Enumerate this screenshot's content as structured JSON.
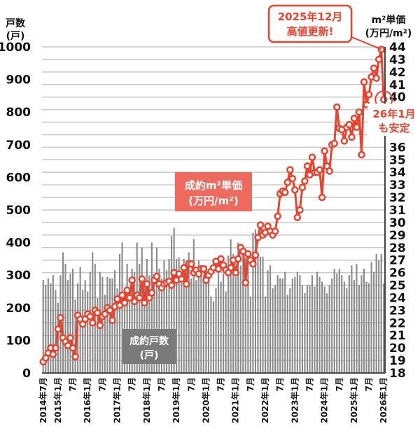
{
  "chart_data": {
    "type": "bar+line",
    "left_axis": {
      "title_line1": "戸数",
      "title_line2": "(戸)",
      "ylim": [
        0,
        1000
      ],
      "ticks": [
        "0",
        "100",
        "200",
        "300",
        "400",
        "500",
        "600",
        "700",
        "800",
        "900",
        "1000"
      ]
    },
    "right_axis": {
      "title_line1": "m²単価",
      "title_line2": "(万円/m²)",
      "ylim": [
        18,
        44
      ],
      "ticks": [
        "18",
        "19",
        "20",
        "21",
        "22",
        "23",
        "24",
        "25",
        "26",
        "27",
        "28",
        "29",
        "30",
        "31",
        "32",
        "33",
        "34",
        "35",
        "36",
        "40",
        "41",
        "42",
        "43",
        "44"
      ]
    },
    "x_start": "2014-07",
    "x_end": "2026-01",
    "x_tick_labels": [
      "2014年7月",
      "2015年1月",
      "7月",
      "2016年1月",
      "7月",
      "2017年1月",
      "7月",
      "2018年1月",
      "7月",
      "2019年1月",
      "7月",
      "2020年1月",
      "7月",
      "2021年1月",
      "7月",
      "2022年1月",
      "7月",
      "2023年1月",
      "7月",
      "2024年1月",
      "7月",
      "2025年1月",
      "7月",
      "2026年1月"
    ],
    "grid": true,
    "series": [
      {
        "name": "成約戸数(戸)",
        "type": "bar",
        "axis": "left",
        "color": "#8a8a8a",
        "values": [
          285,
          270,
          290,
          275,
          300,
          255,
          215,
          300,
          370,
          335,
          285,
          305,
          320,
          225,
          275,
          325,
          255,
          285,
          250,
          310,
          370,
          335,
          230,
          310,
          295,
          240,
          295,
          290,
          290,
          315,
          260,
          365,
          400,
          230,
          335,
          245,
          320,
          310,
          400,
          335,
          385,
          265,
          350,
          300,
          400,
          300,
          385,
          320,
          290,
          345,
          315,
          350,
          420,
          445,
          350,
          355,
          300,
          350,
          345,
          370,
          290,
          410,
          285,
          345,
          305,
          300,
          330,
          285,
          235,
          220,
          260,
          320,
          280,
          305,
          250,
          360,
          410,
          365,
          295,
          400,
          330,
          350,
          355,
          355,
          235,
          430,
          440,
          355,
          357,
          357,
          235,
          315,
          330,
          260,
          270,
          300,
          290,
          290,
          310,
          240,
          260,
          290,
          295,
          310,
          300,
          270,
          245,
          270,
          270,
          300,
          265,
          310,
          295,
          280,
          265,
          245,
          270,
          290,
          320,
          305,
          320,
          300,
          280,
          260,
          300,
          330,
          285,
          335,
          270,
          300,
          320,
          280,
          275,
          340,
          310,
          365,
          345,
          365,
          275
        ]
      },
      {
        "name": "成約m²単価(万円/m²)",
        "type": "line",
        "axis": "right",
        "color": "#e8432e",
        "values": [
          18.9,
          19.2,
          19.6,
          20.0,
          19.5,
          20.0,
          21.5,
          22.4,
          20.8,
          20.5,
          20.2,
          20.8,
          20.0,
          19.3,
          22.6,
          22.3,
          21.9,
          22.3,
          22.7,
          22.5,
          22.0,
          23.0,
          22.8,
          21.8,
          22.5,
          22.7,
          23.2,
          23.0,
          22.2,
          23.3,
          23.9,
          23.4,
          24.2,
          23.6,
          24.6,
          24.0,
          25.4,
          23.7,
          24.2,
          24.0,
          25.5,
          23.6,
          25.1,
          24.0,
          24.4,
          25.4,
          25.7,
          25.1,
          24.8,
          25.1,
          25.2,
          25.3,
          25.0,
          26.0,
          25.4,
          25.9,
          25.5,
          26.4,
          25.1,
          26.7,
          26.7,
          26.0,
          26.2,
          25.9,
          26.3,
          26.3,
          25.4,
          25.8,
          26.1,
          26.4,
          26.9,
          26.3,
          27.1,
          26.6,
          26.2,
          26.0,
          26.4,
          27.0,
          26.0,
          27.1,
          28.0,
          27.7,
          25.2,
          27.5,
          27.0,
          26.7,
          27.4,
          28.8,
          29.8,
          29.0,
          29.2,
          29.7,
          29.3,
          29.0,
          29.3,
          30.5,
          32.3,
          32.5,
          32.4,
          33.2,
          34.2,
          33.5,
          32.6,
          30.4,
          31.0,
          32.8,
          33.3,
          34.5,
          33.8,
          35.2,
          34.0,
          34.0,
          34.2,
          32.0,
          35.7,
          34.5,
          34.1,
          36.2,
          36.3,
          39.2,
          37.5,
          37.4,
          36.5,
          37.6,
          37.8,
          36.8,
          38.3,
          37.6,
          38.8,
          35.4,
          41.2,
          39.4,
          40.2,
          41.6,
          42.3,
          41.5,
          43.0,
          43.8,
          39.8
        ]
      }
    ],
    "annotations": {
      "peak_line1": "2025年12月",
      "peak_line2": "高値更新!",
      "latest_line1": "26年1月",
      "latest_line2": "も安定",
      "line_label1": "成約m²単価",
      "line_label2": "(万円/m²)",
      "bar_label1": "成約戸数",
      "bar_label2": "(戸)"
    }
  }
}
